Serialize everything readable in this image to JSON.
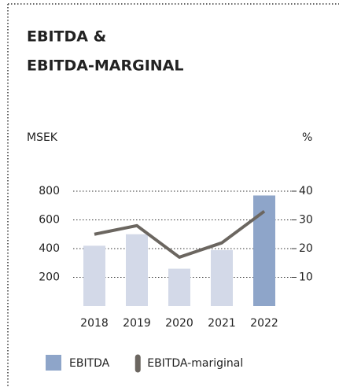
{
  "chart_data": {
    "type": "bar-line",
    "title": [
      "EBITDA &",
      "EBITDA-MARGINAL"
    ],
    "y_label": "MSEK",
    "y2_label": "%",
    "categories": [
      "2018",
      "2019",
      "2020",
      "2021",
      "2022"
    ],
    "series": [
      {
        "name": "EBITDA",
        "type": "bar",
        "color": "#8ea5c9",
        "colors": [
          "#d3d9e8",
          "#d3d9e8",
          "#d3d9e8",
          "#d3d9e8",
          "#8ea5c9"
        ],
        "values": [
          420,
          500,
          260,
          390,
          770
        ]
      },
      {
        "name": "EBITDA-mariginal",
        "type": "line",
        "axis": "y2",
        "color": "#6b6660",
        "values": [
          25,
          28,
          17,
          22,
          33
        ]
      }
    ],
    "ylim": [
      0,
      800
    ],
    "yticks": [
      200,
      400,
      600,
      800
    ],
    "y2lim": [
      0,
      40
    ],
    "y2ticks": [
      10,
      20,
      30,
      40
    ],
    "grid": true
  }
}
